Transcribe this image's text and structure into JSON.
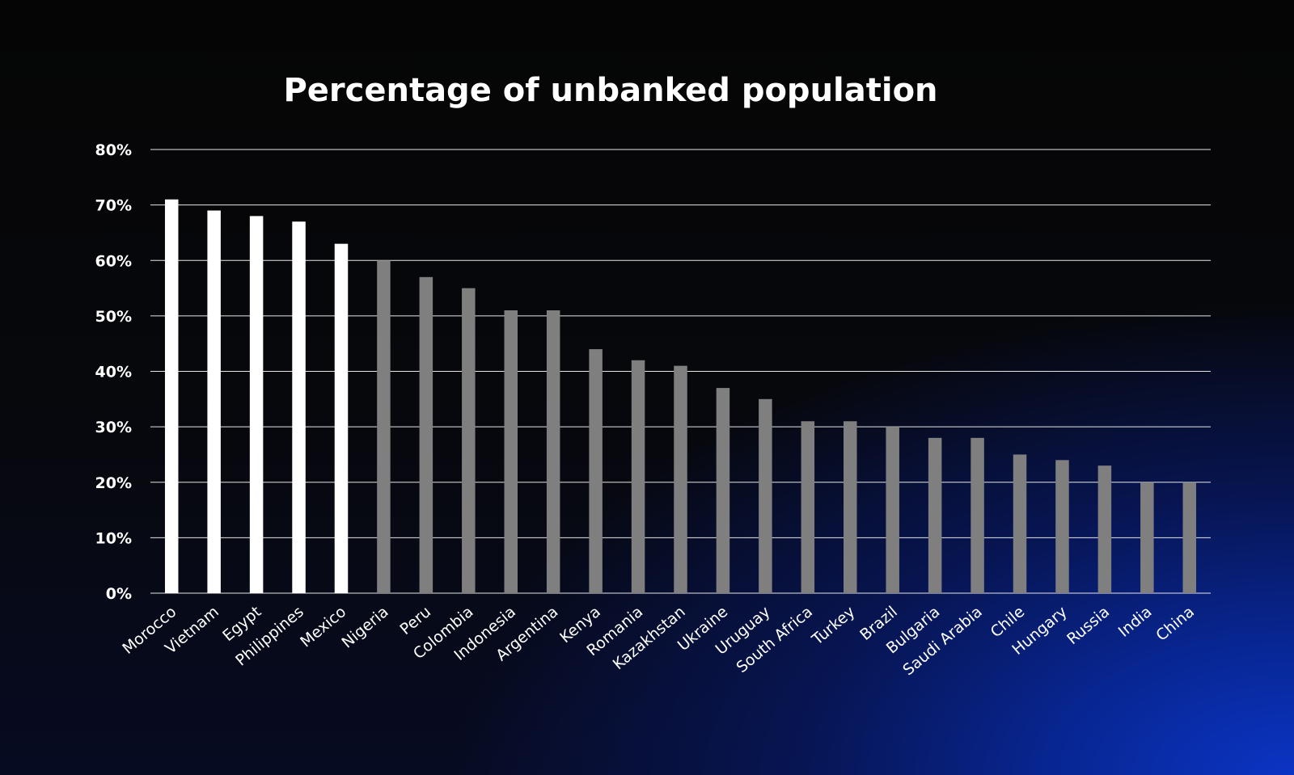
{
  "chart_data": {
    "type": "bar",
    "title": "Percentage of unbanked population",
    "xlabel": "",
    "ylabel": "",
    "ylim": [
      0,
      80
    ],
    "yticks": [
      0,
      10,
      20,
      30,
      40,
      50,
      60,
      70,
      80
    ],
    "ytick_labels": [
      "0%",
      "10%",
      "20%",
      "30%",
      "40%",
      "50%",
      "60%",
      "70%",
      "80%"
    ],
    "grid": true,
    "legend": "none",
    "categories": [
      "Morocco",
      "Vietnam",
      "Egypt",
      "Philippines",
      "Mexico",
      "Nigeria",
      "Peru",
      "Colombia",
      "Indonesia",
      "Argentina",
      "Kenya",
      "Romania",
      "Kazakhstan",
      "Ukraine",
      "Uruguay",
      "South Africa",
      "Turkey",
      "Brazil",
      "Bulgaria",
      "Saudi Arabia",
      "Chile",
      "Hungary",
      "Russia",
      "India",
      "China"
    ],
    "values": [
      71,
      69,
      68,
      67,
      63,
      60,
      57,
      55,
      51,
      51,
      44,
      42,
      41,
      37,
      35,
      31,
      31,
      30,
      28,
      28,
      25,
      24,
      23,
      20,
      20
    ],
    "highlighted_count": 5,
    "colors": {
      "highlight": "#ffffff",
      "default": "#7f7f7f",
      "grid": "#e6e6e6",
      "text": "#ffffff"
    }
  }
}
